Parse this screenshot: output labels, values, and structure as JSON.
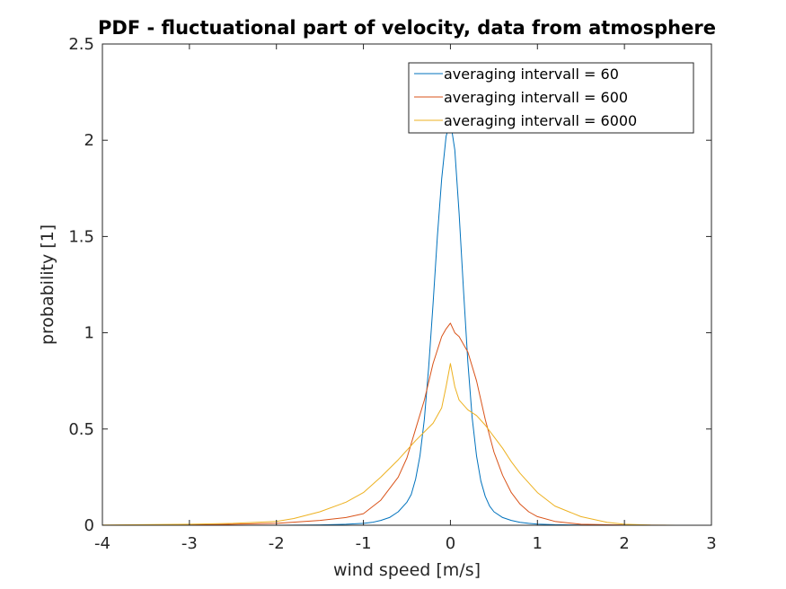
{
  "chart_data": {
    "type": "line",
    "title": "PDF - fluctuational part of velocity, data from atmosphere",
    "xlabel": "wind speed [m/s]",
    "ylabel": "probability [1]",
    "xlim": [
      -4,
      3
    ],
    "ylim": [
      0,
      2.5
    ],
    "xticks": [
      -4,
      -3,
      -2,
      -1,
      0,
      1,
      2,
      3
    ],
    "xtick_labels": [
      "-4",
      "-3",
      "-2",
      "-1",
      "0",
      "1",
      "2",
      "3"
    ],
    "yticks": [
      0,
      0.5,
      1,
      1.5,
      2,
      2.5
    ],
    "ytick_labels": [
      "0",
      "0.5",
      "1",
      "1.5",
      "2",
      "2.5"
    ],
    "grid": false,
    "box": true,
    "legend_position": "top-right",
    "series": [
      {
        "name": "averaging intervall = 60",
        "color": "#0072BD",
        "x": [
          -4.0,
          -3.0,
          -2.0,
          -1.5,
          -1.2,
          -1.0,
          -0.9,
          -0.8,
          -0.7,
          -0.6,
          -0.5,
          -0.45,
          -0.4,
          -0.35,
          -0.3,
          -0.25,
          -0.2,
          -0.15,
          -0.1,
          -0.05,
          0.0,
          0.05,
          0.1,
          0.15,
          0.2,
          0.25,
          0.3,
          0.35,
          0.4,
          0.45,
          0.5,
          0.6,
          0.7,
          0.8,
          0.9,
          1.0,
          1.2,
          1.5,
          2.0,
          2.5
        ],
        "y": [
          0.0,
          0.0,
          0.0,
          0.002,
          0.005,
          0.01,
          0.015,
          0.025,
          0.04,
          0.07,
          0.12,
          0.16,
          0.24,
          0.36,
          0.55,
          0.82,
          1.15,
          1.5,
          1.8,
          2.02,
          2.1,
          1.95,
          1.62,
          1.22,
          0.85,
          0.56,
          0.36,
          0.23,
          0.15,
          0.1,
          0.07,
          0.04,
          0.025,
          0.015,
          0.01,
          0.006,
          0.003,
          0.001,
          0.0,
          0.0
        ]
      },
      {
        "name": "averaging intervall = 600",
        "color": "#D95319",
        "x": [
          -4.0,
          -3.0,
          -2.5,
          -2.0,
          -1.5,
          -1.2,
          -1.0,
          -0.8,
          -0.6,
          -0.5,
          -0.4,
          -0.3,
          -0.2,
          -0.1,
          -0.05,
          0.0,
          0.05,
          0.1,
          0.2,
          0.3,
          0.4,
          0.5,
          0.6,
          0.7,
          0.8,
          0.9,
          1.0,
          1.2,
          1.5,
          2.0,
          2.5
        ],
        "y": [
          0.0,
          0.002,
          0.005,
          0.01,
          0.025,
          0.04,
          0.06,
          0.13,
          0.25,
          0.35,
          0.5,
          0.65,
          0.84,
          0.98,
          1.02,
          1.05,
          1.0,
          0.98,
          0.9,
          0.75,
          0.55,
          0.38,
          0.26,
          0.17,
          0.11,
          0.07,
          0.045,
          0.02,
          0.005,
          0.001,
          0.0
        ]
      },
      {
        "name": "averaging intervall = 6000",
        "color": "#EDB120",
        "x": [
          -4.0,
          -3.0,
          -2.5,
          -2.0,
          -1.8,
          -1.5,
          -1.2,
          -1.0,
          -0.8,
          -0.6,
          -0.4,
          -0.2,
          -0.1,
          -0.05,
          0.0,
          0.05,
          0.1,
          0.2,
          0.3,
          0.4,
          0.5,
          0.6,
          0.7,
          0.8,
          0.9,
          1.0,
          1.2,
          1.5,
          1.8,
          2.0,
          2.3,
          2.6
        ],
        "y": [
          0.001,
          0.005,
          0.01,
          0.02,
          0.035,
          0.07,
          0.12,
          0.17,
          0.25,
          0.34,
          0.44,
          0.53,
          0.61,
          0.72,
          0.84,
          0.72,
          0.65,
          0.6,
          0.57,
          0.52,
          0.46,
          0.4,
          0.33,
          0.27,
          0.22,
          0.17,
          0.1,
          0.045,
          0.015,
          0.005,
          0.001,
          0.0
        ]
      }
    ]
  }
}
